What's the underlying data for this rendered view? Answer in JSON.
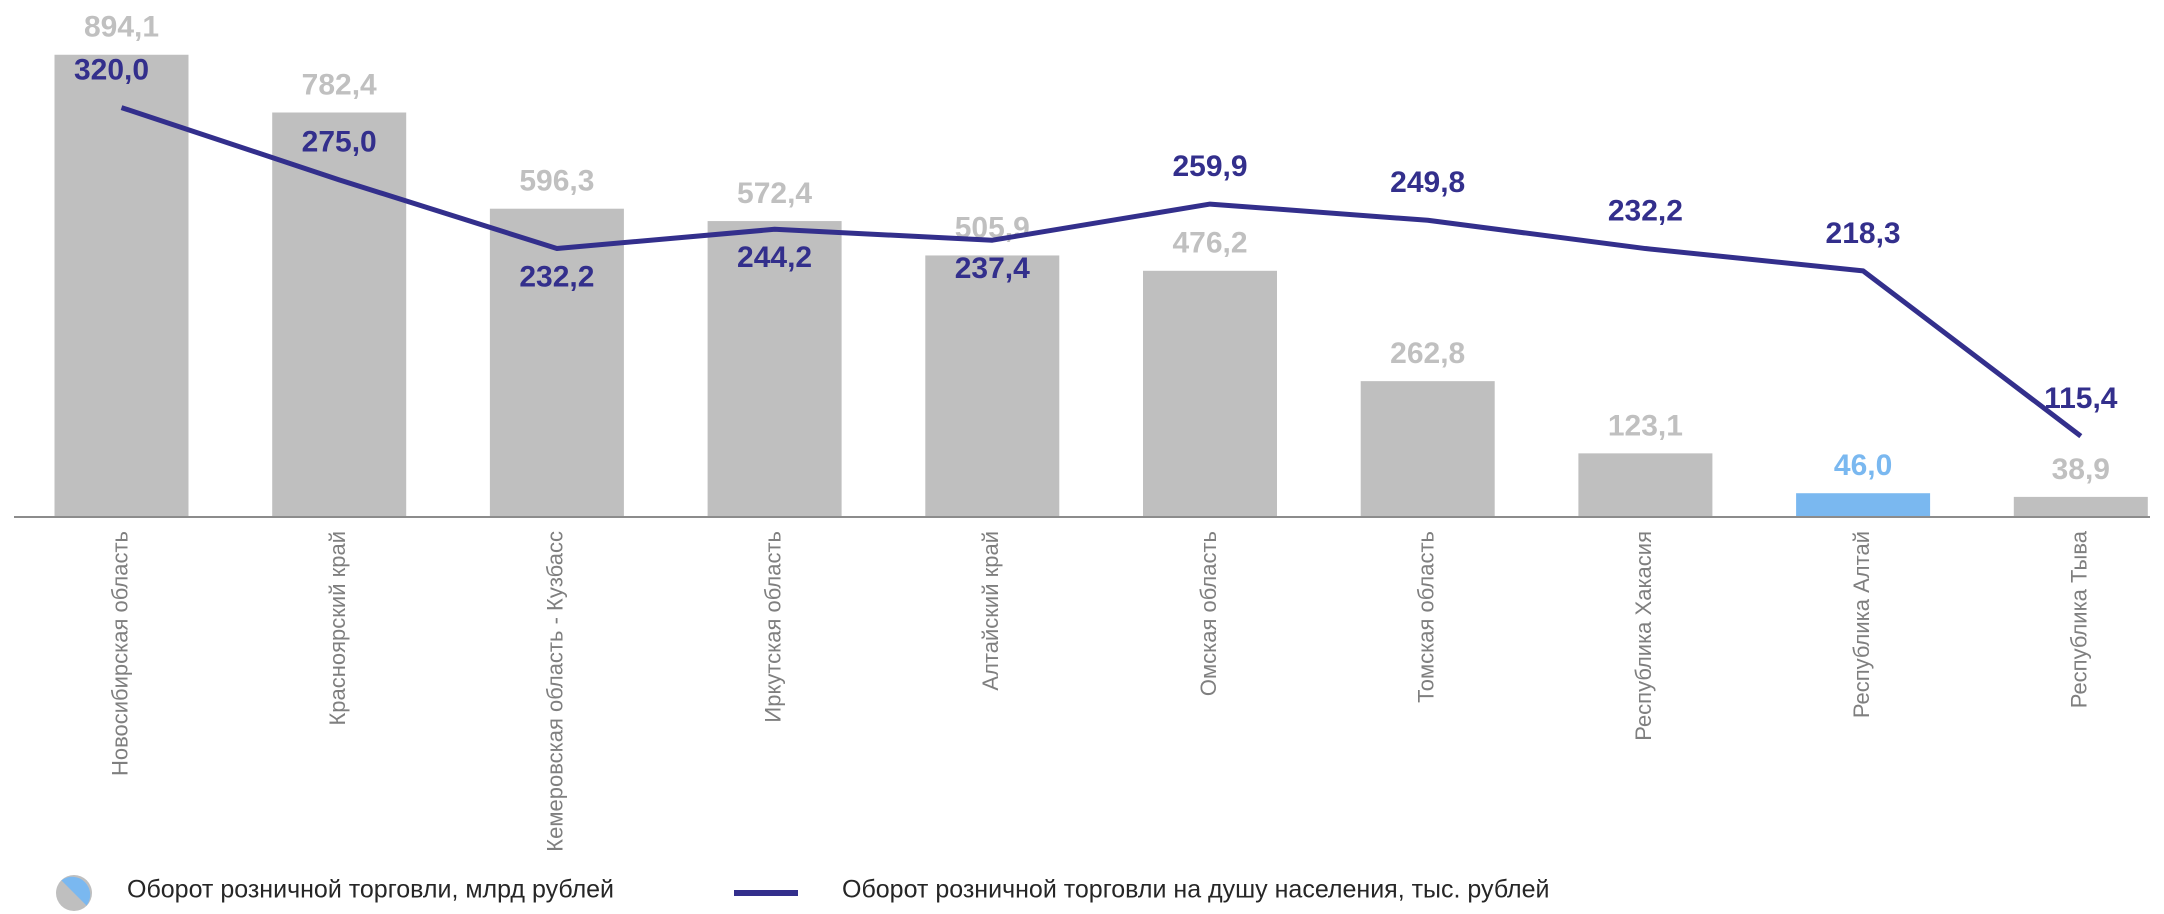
{
  "chart_data": {
    "type": "bar",
    "categories": [
      "Новосибирская область",
      "Красноярский край",
      "Кемеровская область - Кузбасс",
      "Иркутская область",
      "Алтайский край",
      "Омская область",
      "Томская область",
      "Республика Хакасия",
      "Республика Алтай",
      "Республика Тыва"
    ],
    "series": [
      {
        "name": "Оборот розничной торговли, млрд рублей",
        "type": "bar",
        "colors": [
          "#bfbfbf",
          "#bfbfbf",
          "#bfbfbf",
          "#bfbfbf",
          "#bfbfbf",
          "#bfbfbf",
          "#bfbfbf",
          "#bfbfbf",
          "#7ab8f0",
          "#bfbfbf"
        ],
        "values": [
          894.1,
          782.4,
          596.3,
          572.4,
          505.9,
          476.2,
          262.8,
          123.1,
          46.0,
          38.9
        ],
        "value_labels": [
          "894,1",
          "782,4",
          "596,3",
          "572,4",
          "505,9",
          "476,2",
          "262,8",
          "123,1",
          "46,0",
          "38,9"
        ]
      },
      {
        "name": "Оборот розничной торговли на душу населения, тыс. рублей",
        "type": "line",
        "axis": "y2",
        "color": "#332f8c",
        "values": [
          320.0,
          275.0,
          232.2,
          244.2,
          237.4,
          259.9,
          249.8,
          232.2,
          218.3,
          115.4
        ],
        "value_labels": [
          "320,0",
          "275,0",
          "232,2",
          "244,2",
          "237,4",
          "259,9",
          "249,8",
          "232,2",
          "218,3",
          "115,4"
        ]
      }
    ],
    "ylim": [
      0,
      1000
    ],
    "y2lim": [
      65,
      387
    ]
  }
}
